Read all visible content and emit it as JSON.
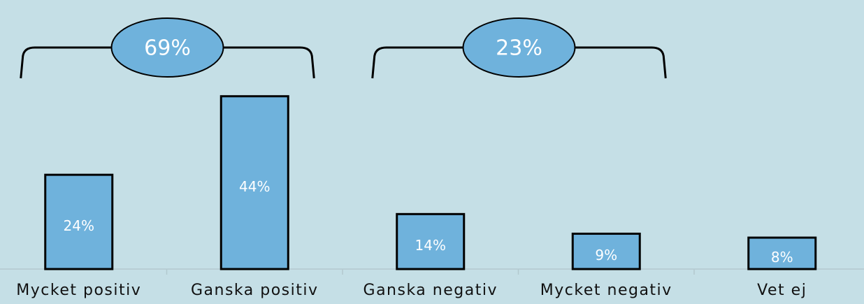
{
  "chart_data": {
    "type": "bar",
    "categories": [
      "Mycket positiv",
      "Ganska positiv",
      "Ganska negativ",
      "Mycket negativ",
      "Vet ej"
    ],
    "values": [
      24,
      44,
      14,
      9,
      8
    ],
    "value_labels": [
      "24%",
      "44%",
      "14%",
      "9%",
      "8%"
    ],
    "color": "#6fb2dc",
    "annotations": [
      "69%",
      "23%"
    ]
  }
}
